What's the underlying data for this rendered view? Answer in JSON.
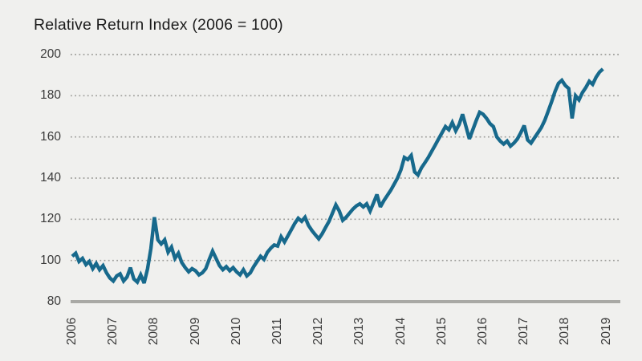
{
  "page": {
    "background": "#F0F0EE"
  },
  "header": {
    "title": "Relative Return Index (2006 = 100)"
  },
  "chart_data": {
    "type": "line",
    "title": "Relative Return Index (2006 = 100)",
    "xlabel": "",
    "ylabel": "",
    "x_tick_labels": [
      "2006",
      "2007",
      "2008",
      "2009",
      "2010",
      "2011",
      "2012",
      "2013",
      "2014",
      "2015",
      "2016",
      "2017",
      "2018",
      "2019"
    ],
    "y_tick_labels": [
      "200",
      "180",
      "160",
      "140",
      "120",
      "100",
      "80"
    ],
    "xlim": [
      2006,
      2019
    ],
    "ylim": [
      80,
      200
    ],
    "grid": "horizontal dotted gridlines at 100-200, solid gray baseline at 80",
    "legend": "none",
    "line_color": "#17698C",
    "gridline_color": "#9d9d9a",
    "baseline_color": "#a9a9a5",
    "start_year": 2006,
    "points_per_year": 12,
    "series": [
      {
        "name": "Relative Return Index",
        "values": [
          102,
          103.5,
          99.5,
          101,
          98,
          99.5,
          96,
          98.5,
          95.5,
          97.5,
          94,
          91.5,
          90,
          92.5,
          93.5,
          90,
          92,
          96.5,
          91,
          89.5,
          93,
          89,
          96,
          106,
          121,
          110,
          108,
          110,
          104,
          106.5,
          101,
          103.5,
          99,
          96.5,
          94.5,
          96,
          95,
          93,
          94,
          96,
          100.5,
          104.5,
          101,
          97.5,
          95.5,
          97,
          95,
          96.5,
          94.5,
          93,
          95.5,
          92.5,
          94,
          97,
          99.5,
          102,
          100.5,
          104,
          106,
          107.5,
          107,
          111.5,
          109,
          112,
          115,
          118,
          120.5,
          119,
          121,
          117,
          114.5,
          112.5,
          110.5,
          113,
          116,
          119,
          123,
          127,
          124,
          119.5,
          121,
          123,
          125,
          126.5,
          127.5,
          126,
          127.5,
          124,
          128,
          132,
          126,
          129,
          131.5,
          134,
          137,
          140,
          144,
          150,
          149,
          151,
          143,
          141.5,
          145,
          147.5,
          150,
          153,
          156,
          159,
          162,
          165,
          163.5,
          167,
          163,
          166,
          171,
          165,
          159,
          163.5,
          168,
          172,
          171,
          169,
          166.5,
          165,
          160,
          158,
          156.5,
          158,
          155.5,
          157,
          159,
          162,
          165.5,
          158.5,
          157,
          159.5,
          162,
          164.5,
          168,
          172.5,
          177,
          182,
          186,
          187.5,
          185,
          183.5,
          169,
          180,
          178,
          181.5,
          184,
          187,
          185.5,
          189,
          191.5,
          193
        ]
      }
    ]
  }
}
